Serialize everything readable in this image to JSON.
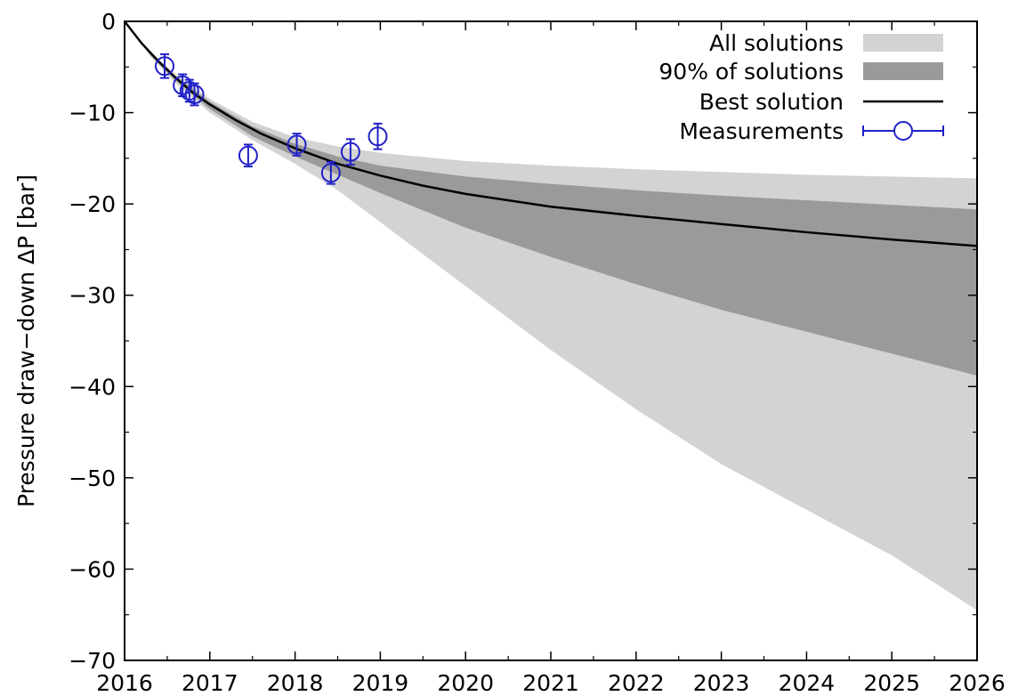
{
  "chart_data": {
    "type": "line",
    "ylabel": "Pressure draw−down ΔP [bar]",
    "xlabel": "",
    "xlim": [
      2016,
      2026
    ],
    "ylim": [
      -70,
      0
    ],
    "x_ticks": [
      "2016",
      "2017",
      "2018",
      "2019",
      "2020",
      "2021",
      "2022",
      "2023",
      "2024",
      "2025",
      "2026"
    ],
    "y_ticks": [
      "0",
      "−10",
      "−20",
      "−30",
      "−40",
      "−50",
      "−60",
      "−70"
    ],
    "legend": {
      "position": "top-right",
      "entries": [
        {
          "label": "All solutions",
          "color": "#d3d3d3",
          "kind": "fill"
        },
        {
          "label": "90% of solutions",
          "color": "#9a9a9a",
          "kind": "fill"
        },
        {
          "label": "Best solution",
          "color": "#000000",
          "kind": "line"
        },
        {
          "label": "Measurements",
          "color": "#2020c8",
          "kind": "marker"
        }
      ]
    },
    "bands": [
      {
        "name": "All solutions",
        "color": "#d3d3d3",
        "x": [
          2016.0,
          2016.3,
          2016.6,
          2017.0,
          2017.5,
          2018.0,
          2018.5,
          2019.0,
          2020.0,
          2021.0,
          2022.0,
          2023.0,
          2024.0,
          2025.0,
          2026.0
        ],
        "upper": [
          0.0,
          -3.3,
          -5.8,
          -8.5,
          -11.0,
          -12.7,
          -13.7,
          -14.4,
          -15.3,
          -15.8,
          -16.2,
          -16.5,
          -16.8,
          -17.0,
          -17.2
        ],
        "lower": [
          0.0,
          -3.8,
          -6.8,
          -10.0,
          -13.0,
          -15.6,
          -18.5,
          -22.0,
          -29.0,
          -36.0,
          -42.5,
          -48.5,
          -53.5,
          -58.5,
          -64.5
        ]
      },
      {
        "name": "90% of solutions",
        "color": "#9a9a9a",
        "x": [
          2016.0,
          2016.3,
          2016.6,
          2017.0,
          2017.5,
          2018.0,
          2018.5,
          2019.0,
          2020.0,
          2021.0,
          2022.0,
          2023.0,
          2024.0,
          2025.0,
          2026.0
        ],
        "upper": [
          0.0,
          -3.4,
          -6.0,
          -8.8,
          -11.5,
          -13.4,
          -14.8,
          -15.8,
          -17.0,
          -17.8,
          -18.5,
          -19.1,
          -19.6,
          -20.1,
          -20.6
        ],
        "lower": [
          0.0,
          -3.7,
          -6.5,
          -9.6,
          -12.6,
          -14.8,
          -16.8,
          -18.8,
          -22.6,
          -25.8,
          -28.8,
          -31.6,
          -34.0,
          -36.4,
          -38.8
        ]
      }
    ],
    "series": [
      {
        "name": "Best solution",
        "color": "#000000",
        "x": [
          2016.0,
          2016.2,
          2016.4,
          2016.6,
          2016.8,
          2017.0,
          2017.3,
          2017.6,
          2018.0,
          2018.5,
          2019.0,
          2019.5,
          2020.0,
          2021.0,
          2022.0,
          2023.0,
          2024.0,
          2025.0,
          2026.0
        ],
        "y": [
          0.0,
          -2.4,
          -4.4,
          -6.2,
          -7.8,
          -9.1,
          -10.8,
          -12.3,
          -13.9,
          -15.6,
          -16.9,
          -18.0,
          -18.9,
          -20.3,
          -21.3,
          -22.2,
          -23.1,
          -23.9,
          -24.6
        ]
      }
    ],
    "measurements": {
      "name": "Measurements",
      "color": "#2020c8",
      "points": [
        {
          "x": 2016.47,
          "y": -4.9,
          "err": 1.3
        },
        {
          "x": 2016.68,
          "y": -7.0,
          "err": 1.2
        },
        {
          "x": 2016.76,
          "y": -7.6,
          "err": 1.2
        },
        {
          "x": 2016.82,
          "y": -8.0,
          "err": 1.2
        },
        {
          "x": 2017.45,
          "y": -14.7,
          "err": 1.2
        },
        {
          "x": 2018.02,
          "y": -13.5,
          "err": 1.2
        },
        {
          "x": 2018.42,
          "y": -16.6,
          "err": 1.2
        },
        {
          "x": 2018.65,
          "y": -14.3,
          "err": 1.4
        },
        {
          "x": 2018.97,
          "y": -12.6,
          "err": 1.4
        }
      ]
    }
  }
}
